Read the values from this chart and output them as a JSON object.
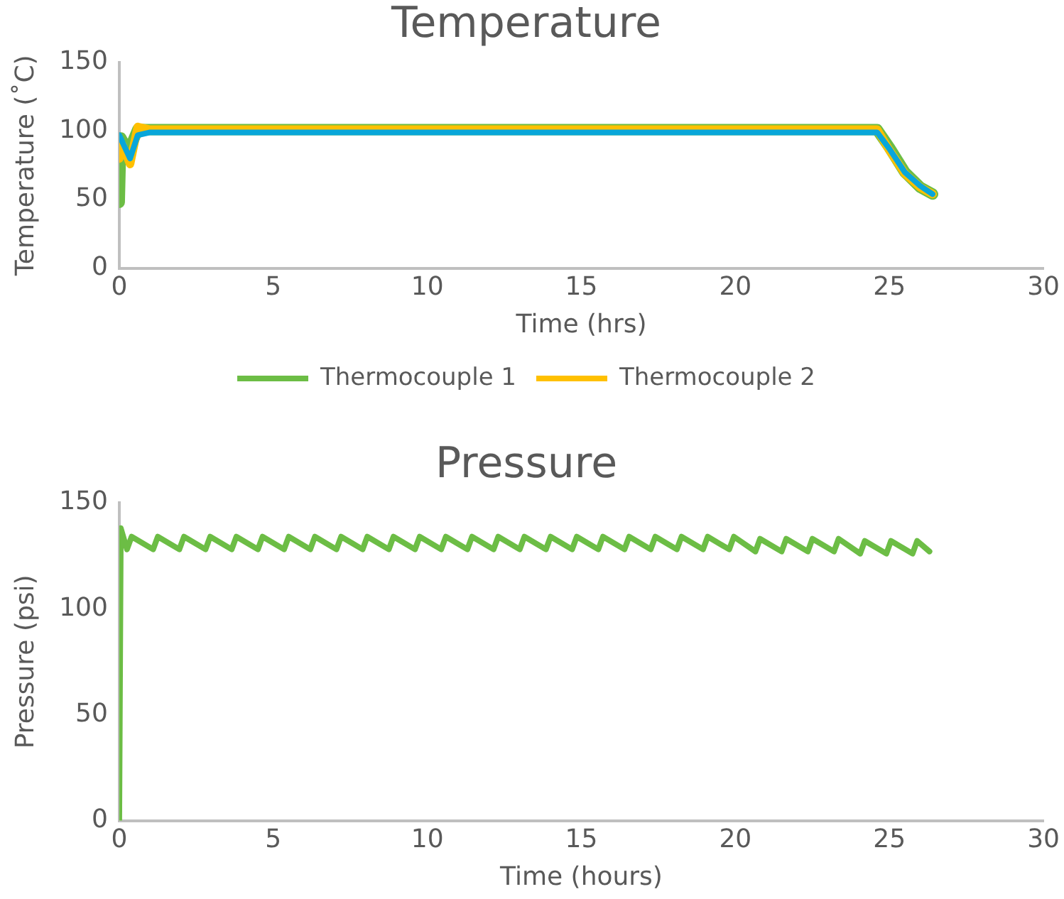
{
  "chart_data": [
    {
      "type": "line",
      "title": "Temperature",
      "xlabel": "Time (hrs)",
      "ylabel": "Temperature (˚C)",
      "xlim": [
        0,
        30
      ],
      "xticks": [
        0,
        5,
        10,
        15,
        20,
        25,
        30
      ],
      "ylim": [
        0,
        150
      ],
      "yticks": [
        0,
        50,
        100,
        150
      ],
      "grid": false,
      "legend": "bottom",
      "marker": "none",
      "series": [
        {
          "name": "Thermocouple 1",
          "color": "#6cbd45",
          "x": [
            0,
            0.05,
            0.3,
            0.6,
            1,
            24.6,
            25,
            25.5,
            26,
            26.4
          ],
          "values": [
            48,
            95,
            85,
            101,
            101,
            101,
            88,
            70,
            59,
            54
          ]
        },
        {
          "name": "Thermocouple 2",
          "color": "#ffc000",
          "x": [
            0,
            0.1,
            0.35,
            0.6,
            1,
            24.6,
            25,
            25.5,
            26,
            26.4
          ],
          "values": [
            80,
            90,
            76,
            103,
            101,
            101,
            86,
            69,
            59,
            54
          ]
        },
        {
          "color": "#08a6da",
          "x": [
            0,
            0.1,
            0.35,
            0.6,
            1,
            24.6,
            25,
            25.5,
            26,
            26.4
          ],
          "values": [
            97,
            92,
            80,
            97,
            99,
            99,
            87,
            70,
            60,
            54
          ]
        }
      ]
    },
    {
      "type": "line",
      "title": "Pressure",
      "xlabel": "Time (hours)",
      "ylabel": "Pressure (psi)",
      "xlim": [
        0,
        30
      ],
      "xticks": [
        0,
        5,
        10,
        15,
        20,
        25,
        30
      ],
      "ylim": [
        0,
        150
      ],
      "yticks": [
        0,
        50,
        100,
        150
      ],
      "grid": false,
      "legend": false,
      "marker": "none",
      "series": [
        {
          "color": "#6cbd45",
          "x": [
            0,
            0.05,
            0.25,
            0.4,
            1.1,
            1.25,
            1.95,
            2.1,
            2.8,
            2.95,
            3.65,
            3.8,
            4.5,
            4.65,
            5.35,
            5.5,
            6.2,
            6.35,
            7.05,
            7.2,
            7.9,
            8.05,
            8.75,
            8.9,
            9.6,
            9.75,
            10.45,
            10.6,
            11.3,
            11.45,
            12.15,
            12.3,
            13,
            13.15,
            13.85,
            14,
            14.7,
            14.85,
            15.55,
            15.7,
            16.4,
            16.55,
            17.25,
            17.4,
            18.1,
            18.25,
            18.95,
            19.1,
            19.8,
            19.95,
            20.65,
            20.8,
            21.5,
            21.65,
            22.35,
            22.5,
            23.2,
            23.35,
            24.05,
            24.2,
            24.9,
            25.05,
            25.75,
            25.9,
            26.3
          ],
          "values": [
            0,
            138,
            128,
            134,
            128,
            134,
            128,
            134,
            128,
            134,
            128,
            134,
            128,
            134,
            128,
            134,
            128,
            134,
            128,
            134,
            128,
            134,
            128,
            134,
            128,
            134,
            128,
            134,
            128,
            134,
            128,
            134,
            128,
            134,
            128,
            134,
            128,
            134,
            128,
            134,
            128,
            134,
            128,
            134,
            128,
            134,
            128,
            134,
            128,
            134,
            127,
            133,
            127,
            133,
            127,
            133,
            127,
            133,
            126,
            132,
            126,
            132,
            126,
            132,
            127
          ]
        }
      ]
    }
  ]
}
